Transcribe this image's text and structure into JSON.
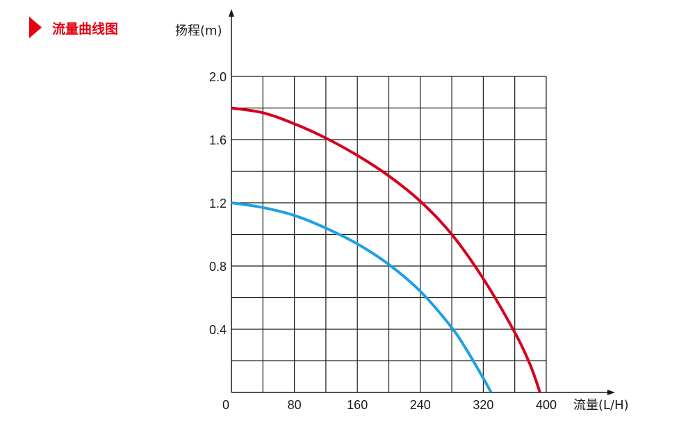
{
  "heading": {
    "text": "流量曲线图",
    "color": "#e60012",
    "marker_icon": "triangle-right-icon"
  },
  "chart_data": {
    "type": "line",
    "title": "",
    "xlabel": "流量(L/H)",
    "ylabel": "扬程(m)",
    "xlim": [
      0,
      400
    ],
    "ylim": [
      0,
      2.0
    ],
    "x_ticks": [
      0,
      80,
      160,
      240,
      320,
      400
    ],
    "x_tick_labels": [
      "0",
      "80",
      "160",
      "240",
      "320",
      "400"
    ],
    "y_ticks": [
      0.4,
      0.8,
      1.2,
      1.6,
      2.0
    ],
    "y_tick_labels": [
      "0.4",
      "0.8",
      "1.2",
      "1.6",
      "2.0"
    ],
    "grid": true,
    "grid_x_step": 40,
    "grid_y_step": 0.2,
    "series": [
      {
        "color": "#d7001c",
        "x": [
          0,
          40,
          80,
          120,
          160,
          200,
          240,
          280,
          320,
          360,
          380,
          392
        ],
        "y": [
          1.8,
          1.77,
          1.7,
          1.61,
          1.5,
          1.37,
          1.21,
          1.0,
          0.72,
          0.38,
          0.17,
          0.0
        ]
      },
      {
        "color": "#1ea0e6",
        "x": [
          0,
          40,
          80,
          120,
          160,
          200,
          240,
          280,
          300,
          320,
          330
        ],
        "y": [
          1.2,
          1.17,
          1.12,
          1.04,
          0.94,
          0.81,
          0.64,
          0.41,
          0.26,
          0.09,
          0.0
        ]
      }
    ]
  }
}
